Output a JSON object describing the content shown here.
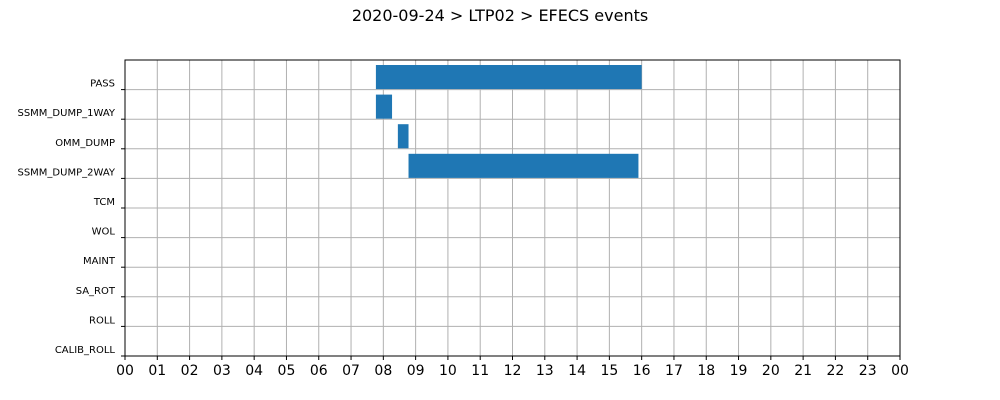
{
  "chart_data": {
    "type": "bar",
    "orientation": "horizontal",
    "title": "2020-09-24 > LTP02 > EFECS events",
    "xlabel": "",
    "ylabel": "",
    "categories": [
      "PASS",
      "SSMM_DUMP_1WAY",
      "OMM_DUMP",
      "SSMM_DUMP_2WAY",
      "TCM",
      "WOL",
      "MAINT",
      "SA_ROT",
      "ROLL",
      "CALIB_ROLL"
    ],
    "x_tick_labels": [
      "00",
      "01",
      "02",
      "03",
      "04",
      "05",
      "06",
      "07",
      "08",
      "09",
      "10",
      "11",
      "12",
      "13",
      "14",
      "15",
      "16",
      "17",
      "18",
      "19",
      "20",
      "21",
      "22",
      "23",
      "00"
    ],
    "xlim": [
      0,
      24
    ],
    "x_unit": "hour",
    "grid": true,
    "color": "#1f77b4",
    "series": [
      {
        "values": [
          {
            "category": "PASS",
            "start": 7.77,
            "end": 16.0
          },
          {
            "category": "SSMM_DUMP_1WAY",
            "start": 7.77,
            "end": 8.27
          },
          {
            "category": "OMM_DUMP",
            "start": 8.45,
            "end": 8.78
          },
          {
            "category": "SSMM_DUMP_2WAY",
            "start": 8.78,
            "end": 15.9
          }
        ]
      }
    ]
  }
}
